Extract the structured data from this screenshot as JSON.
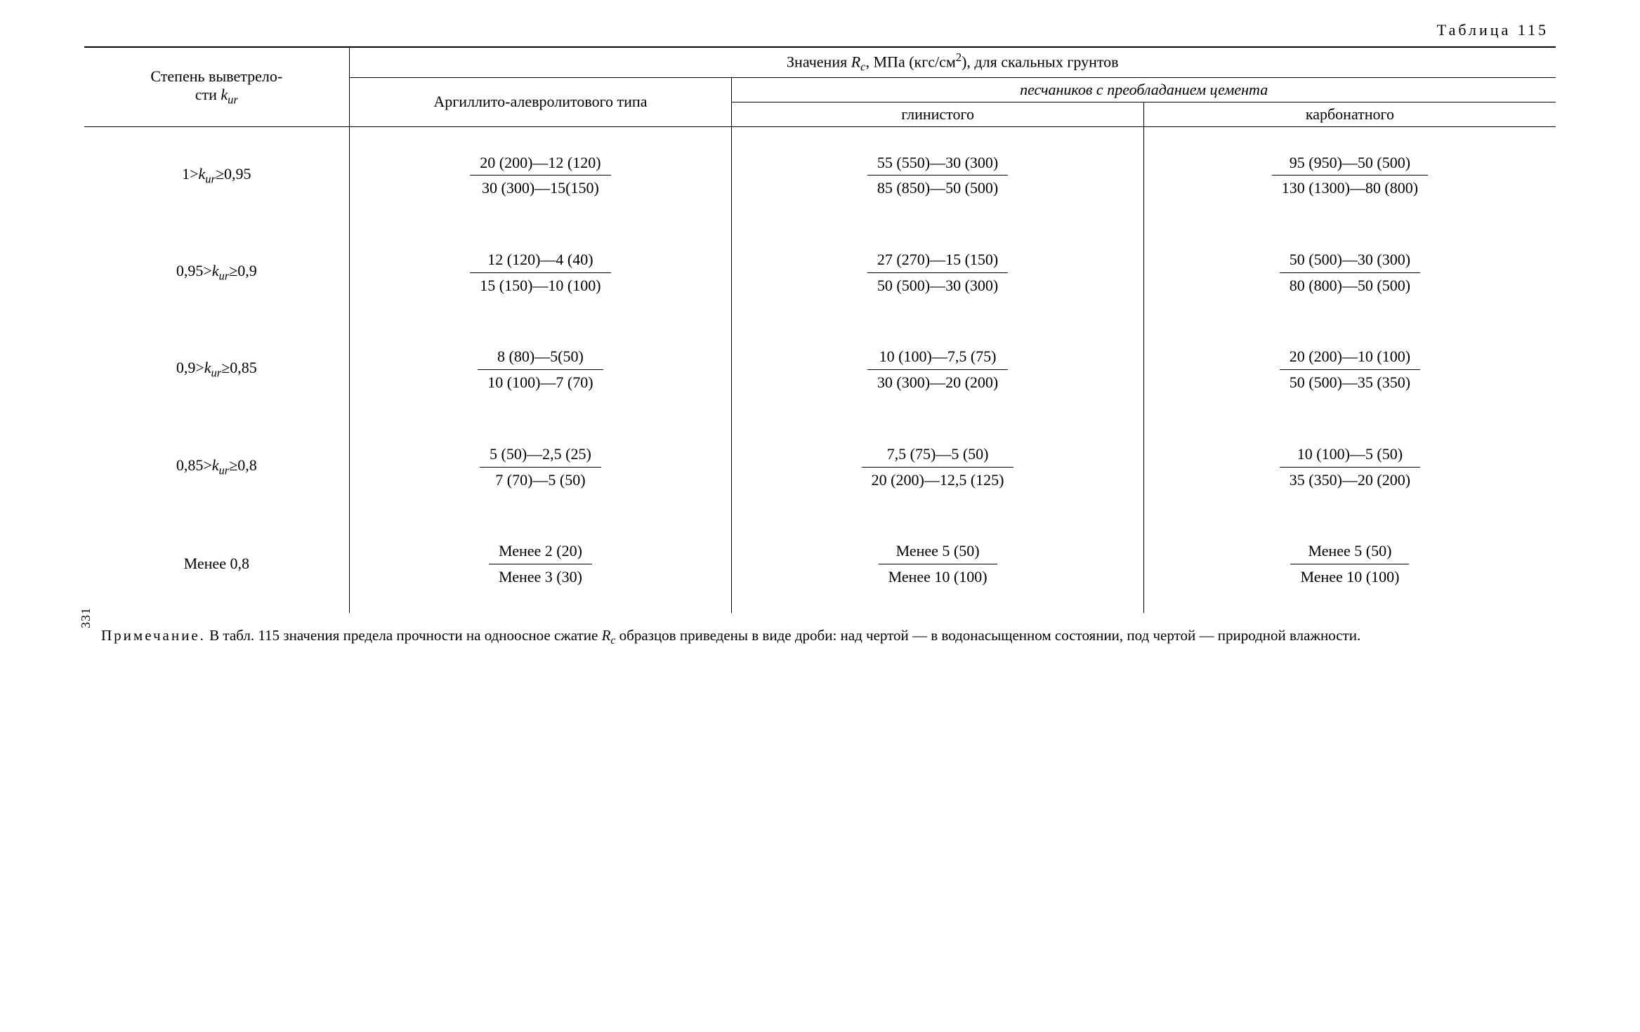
{
  "caption_prefix": "Таблица",
  "caption_number": "115",
  "header": {
    "col1_line1": "Степень выветрело-",
    "col1_line2": "сти ",
    "col1_sym_k": "k",
    "col1_sym_ur": "ur",
    "top_left": "Значения ",
    "top_R": "R",
    "top_c": "c",
    "top_right_units": ", МПа (кгс/см",
    "top_right_sq": "2",
    "top_right_tail": "), для скальных грунтов",
    "col2": "Аргиллито-алевролитового типа",
    "span34": "песчаников с преобладанием цемента",
    "col3": "глинистого",
    "col4": "карбонатного"
  },
  "rows": [
    {
      "label_pre": "1>",
      "label_k": "k",
      "label_ur": "ur",
      "label_post": "≥0,95",
      "c2": {
        "num": "20 (200)—12 (120)",
        "den": "30 (300)—15(150)"
      },
      "c3": {
        "num": "55 (550)—30 (300)",
        "den": "85 (850)—50 (500)"
      },
      "c4": {
        "num": "95 (950)—50 (500)",
        "den": "130 (1300)—80 (800)"
      }
    },
    {
      "label_pre": "0,95>",
      "label_k": "k",
      "label_ur": "ur",
      "label_post": "≥0,9",
      "c2": {
        "num": "12 (120)—4 (40)",
        "den": "15 (150)—10 (100)"
      },
      "c3": {
        "num": "27 (270)—15 (150)",
        "den": "50 (500)—30 (300)"
      },
      "c4": {
        "num": "50 (500)—30 (300)",
        "den": "80 (800)—50 (500)"
      }
    },
    {
      "label_pre": "0,9>",
      "label_k": "k",
      "label_ur": "ur",
      "label_post": "≥0,85",
      "c2": {
        "num": "8 (80)—5(50)",
        "den": "10 (100)—7 (70)"
      },
      "c3": {
        "num": "10 (100)—7,5 (75)",
        "den": "30 (300)—20 (200)"
      },
      "c4": {
        "num": "20 (200)—10 (100)",
        "den": "50 (500)—35 (350)"
      }
    },
    {
      "label_pre": "0,85>",
      "label_k": "k",
      "label_ur": "ur",
      "label_post": "≥0,8",
      "c2": {
        "num": "5 (50)—2,5 (25)",
        "den": "7 (70)—5 (50)"
      },
      "c3": {
        "num": "7,5 (75)—5 (50)",
        "den": "20 (200)—12,5 (125)"
      },
      "c4": {
        "num": "10 (100)—5 (50)",
        "den": "35 (350)—20 (200)"
      }
    },
    {
      "label_plain": "Менее 0,8",
      "c2": {
        "num": "Менее 2 (20)",
        "den": "Менее 3 (30)"
      },
      "c3": {
        "num": "Менее 5 (50)",
        "den": "Менее 10 (100)"
      },
      "c4": {
        "num": "Менее 5 (50)",
        "den": "Менее 10 (100)"
      }
    }
  ],
  "note": {
    "label": "Примечание.",
    "text_a": " В табл. 115 значения предела прочности на одноосное сжатие ",
    "R": "R",
    "c": "c",
    "text_b": " образцов приведены в виде дро­би: над чертой — в водонасыщенном состоянии, под чертой — природной влажности.",
    "pagenum": "331"
  },
  "style": {
    "columns_pct": [
      18,
      26,
      28,
      28
    ]
  }
}
